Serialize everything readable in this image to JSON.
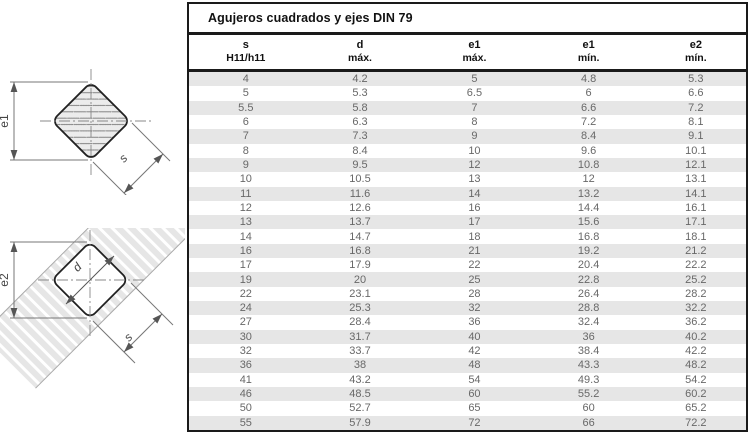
{
  "title": "Agujeros cuadrados y ejes DIN 79",
  "table": {
    "columns": [
      {
        "line1": "s",
        "line2": "H11/h11"
      },
      {
        "line1": "d",
        "line2": "máx."
      },
      {
        "line1": "e1",
        "line2": "máx."
      },
      {
        "line1": "e1",
        "line2": "mín."
      },
      {
        "line1": "e2",
        "line2": "mín."
      }
    ],
    "rows": [
      [
        "4",
        "4.2",
        "5",
        "4.8",
        "5.3"
      ],
      [
        "5",
        "5.3",
        "6.5",
        "6",
        "6.6"
      ],
      [
        "5.5",
        "5.8",
        "7",
        "6.6",
        "7.2"
      ],
      [
        "6",
        "6.3",
        "8",
        "7.2",
        "8.1"
      ],
      [
        "7",
        "7.3",
        "9",
        "8.4",
        "9.1"
      ],
      [
        "8",
        "8.4",
        "10",
        "9.6",
        "10.1"
      ],
      [
        "9",
        "9.5",
        "12",
        "10.8",
        "12.1"
      ],
      [
        "10",
        "10.5",
        "13",
        "12",
        "13.1"
      ],
      [
        "11",
        "11.6",
        "14",
        "13.2",
        "14.1"
      ],
      [
        "12",
        "12.6",
        "16",
        "14.4",
        "16.1"
      ],
      [
        "13",
        "13.7",
        "17",
        "15.6",
        "17.1"
      ],
      [
        "14",
        "14.7",
        "18",
        "16.8",
        "18.1"
      ],
      [
        "16",
        "16.8",
        "21",
        "19.2",
        "21.2"
      ],
      [
        "17",
        "17.9",
        "22",
        "20.4",
        "22.2"
      ],
      [
        "19",
        "20",
        "25",
        "22.8",
        "25.2"
      ],
      [
        "22",
        "23.1",
        "28",
        "26.4",
        "28.2"
      ],
      [
        "24",
        "25.3",
        "32",
        "28.8",
        "32.2"
      ],
      [
        "27",
        "28.4",
        "36",
        "32.4",
        "36.2"
      ],
      [
        "30",
        "31.7",
        "40",
        "36",
        "40.2"
      ],
      [
        "32",
        "33.7",
        "42",
        "38.4",
        "42.2"
      ],
      [
        "36",
        "38",
        "48",
        "43.3",
        "48.2"
      ],
      [
        "41",
        "43.2",
        "54",
        "49.3",
        "54.2"
      ],
      [
        "46",
        "48.5",
        "60",
        "55.2",
        "60.2"
      ],
      [
        "50",
        "52.7",
        "65",
        "60",
        "65.2"
      ],
      [
        "55",
        "57.9",
        "72",
        "66",
        "72.2"
      ]
    ]
  },
  "diagrams": {
    "shaft": {
      "labels": {
        "e1": "e1",
        "s": "s"
      }
    },
    "hole": {
      "labels": {
        "e2": "e2",
        "d": "d",
        "s": "s"
      }
    }
  },
  "colors": {
    "row_alt": "#e6e6e6",
    "row_text": "#686868",
    "border": "#1a1a1a",
    "hatch": "#777777",
    "dim_line": "#777777"
  }
}
